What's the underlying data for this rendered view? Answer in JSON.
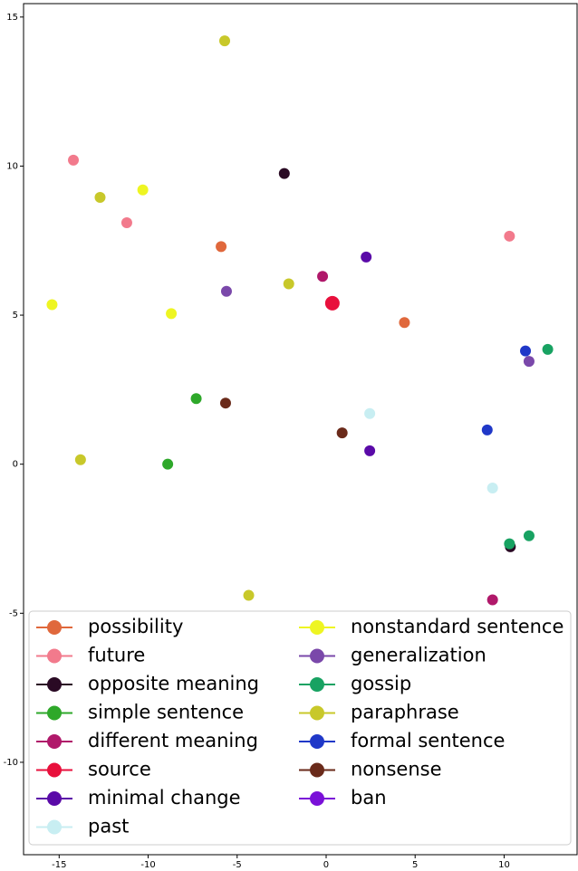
{
  "chart_data": {
    "type": "scatter",
    "xlim": [
      -17.0,
      14.1
    ],
    "ylim": [
      -13.1,
      15.45
    ],
    "xticks": [
      -15,
      -10,
      -5,
      0,
      5,
      10
    ],
    "yticks": [
      -10,
      -5,
      0,
      5,
      10,
      15
    ],
    "legend": "lower center",
    "series": [
      {
        "name": "possibility",
        "color": "#e0683c",
        "x": [
          -5.9,
          4.4
        ],
        "values": [
          7.3,
          4.75
        ]
      },
      {
        "name": "future",
        "color": "#f27a8c",
        "x": [
          -14.2,
          -11.2,
          10.3
        ],
        "values": [
          10.2,
          8.1,
          7.65
        ]
      },
      {
        "name": "opposite meaning",
        "color": "#2a0a24",
        "x": [
          -2.35,
          10.35
        ],
        "values": [
          9.75,
          -2.77
        ]
      },
      {
        "name": "simple sentence",
        "color": "#2ea82a",
        "x": [
          -7.3,
          -8.9
        ],
        "values": [
          2.2,
          0.0
        ]
      },
      {
        "name": "different meaning",
        "color": "#b0186a",
        "x": [
          -0.2,
          9.35
        ],
        "values": [
          6.3,
          -4.55
        ]
      },
      {
        "name": "source",
        "color": "#e8103c",
        "x": [
          0.35
        ],
        "values": [
          5.4
        ]
      },
      {
        "name": "minimal change",
        "color": "#5a0aa8",
        "x": [
          2.25,
          2.45
        ],
        "values": [
          6.95,
          0.45
        ]
      },
      {
        "name": "past",
        "color": "#c8eef2",
        "x": [
          2.45,
          9.35
        ],
        "values": [
          1.7,
          -0.8
        ]
      },
      {
        "name": "nonstandard sentence",
        "color": "#eef522",
        "x": [
          -10.3,
          -15.4,
          -8.7
        ],
        "values": [
          9.2,
          5.35,
          5.05
        ]
      },
      {
        "name": "generalization",
        "color": "#7a48aa",
        "x": [
          -5.6,
          11.4
        ],
        "values": [
          5.8,
          3.45
        ]
      },
      {
        "name": "gossip",
        "color": "#18a262",
        "x": [
          12.45,
          11.4,
          10.3
        ],
        "values": [
          3.85,
          -2.4,
          -2.67
        ]
      },
      {
        "name": "paraphrase",
        "color": "#c8c82a",
        "x": [
          -5.7,
          -12.7,
          -2.1,
          -13.8,
          -4.35
        ],
        "values": [
          14.2,
          8.95,
          6.05,
          0.15,
          -4.4
        ]
      },
      {
        "name": "formal sentence",
        "color": "#2038c8",
        "x": [
          11.2,
          9.05
        ],
        "values": [
          3.8,
          1.15
        ]
      },
      {
        "name": "nonsense",
        "color": "#6a2a1a",
        "x": [
          -5.65,
          0.9
        ],
        "values": [
          2.05,
          1.05
        ]
      },
      {
        "name": "ban",
        "color": "#7a10d8",
        "x": [],
        "values": []
      }
    ]
  }
}
